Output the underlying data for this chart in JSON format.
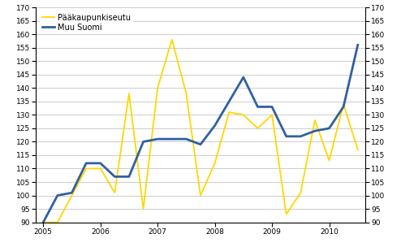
{
  "paa_values": [
    90,
    90,
    100,
    110,
    110,
    101,
    138,
    95,
    140,
    158,
    138,
    100,
    112,
    131,
    130,
    125,
    130,
    93,
    101,
    128,
    113,
    134,
    117
  ],
  "muu_values": [
    90,
    100,
    101,
    112,
    112,
    107,
    107,
    120,
    121,
    121,
    121,
    119,
    126,
    135,
    144,
    133,
    133,
    122,
    122,
    124,
    125,
    133,
    156
  ],
  "paa_color": "#FFD700",
  "muu_color": "#3060A0",
  "paa_label": "Pääkaupunkiseutu",
  "muu_label": "Muu Suomi",
  "ylim": [
    90,
    170
  ],
  "y_ticks": [
    90,
    95,
    100,
    105,
    110,
    115,
    120,
    125,
    130,
    135,
    140,
    145,
    150,
    155,
    160,
    165,
    170
  ],
  "year_tick_positions": [
    0,
    4,
    8,
    12,
    16,
    20
  ],
  "year_labels": [
    "2005",
    "2006",
    "2007",
    "2008",
    "2009",
    "2010"
  ],
  "background_color": "#ffffff",
  "grid_color": "#b8b8b8",
  "paa_linewidth": 1.3,
  "muu_linewidth": 2.0
}
